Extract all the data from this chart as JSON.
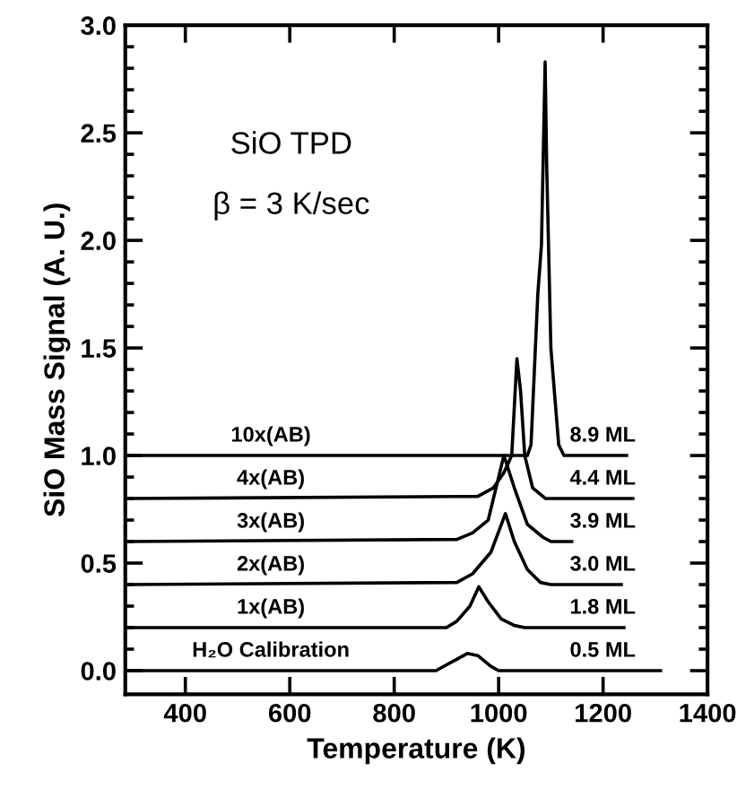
{
  "chart_data": {
    "type": "line",
    "title": "SiO TPD",
    "subtitle": "β = 3 K/sec",
    "xlabel": "Temperature (K)",
    "ylabel": "SiO Mass Signal (A. U.)",
    "xlim": [
      285,
      1400
    ],
    "ylim": [
      -0.11,
      3.0
    ],
    "xticks": [
      400,
      600,
      800,
      1000,
      1200,
      1400
    ],
    "yticks": [
      {
        "value": 0,
        "label": "0.0"
      },
      {
        "value": 0.1,
        "label": null
      },
      {
        "value": 0.2,
        "label": null
      },
      {
        "value": 0.3,
        "label": null
      },
      {
        "value": 0.4,
        "label": null
      },
      0.5,
      {
        "value": 0.6,
        "label": null
      },
      {
        "value": 0.7,
        "label": null
      },
      {
        "value": 0.8,
        "label": null
      },
      {
        "value": 0.9,
        "label": null
      },
      {
        "value": 1,
        "label": "1.0"
      },
      {
        "value": 1.1,
        "label": null
      },
      {
        "value": 1.2,
        "label": null
      },
      {
        "value": 1.3,
        "label": null
      },
      {
        "value": 1.4,
        "label": null
      },
      1.5,
      {
        "value": 1.6,
        "label": null
      },
      {
        "value": 1.7,
        "label": null
      },
      {
        "value": 1.8,
        "label": null
      },
      {
        "value": 1.9,
        "label": null
      },
      {
        "value": 2,
        "label": "2.0"
      },
      {
        "value": 2.1,
        "label": null
      },
      {
        "value": 2.2,
        "label": null
      },
      {
        "value": 2.3,
        "label": null
      },
      {
        "value": 2.4,
        "label": null
      },
      2.5,
      {
        "value": 2.6,
        "label": null
      },
      {
        "value": 2.7,
        "label": null
      },
      {
        "value": 2.8,
        "label": null
      },
      {
        "value": 2.9,
        "label": null
      },
      {
        "value": 3,
        "label": "3.0"
      }
    ],
    "grid": false,
    "marker": "none",
    "line_style": "solid",
    "series": [
      {
        "name": "H₂O Calibration",
        "color": "#000000",
        "x": [
          290,
          880,
          910,
          940,
          960,
          985,
          1000,
          1050,
          1310
        ],
        "values": [
          0,
          0,
          0.04,
          0.08,
          0.07,
          0.02,
          0,
          0,
          0
        ]
      },
      {
        "name": "1x(AB)",
        "color": "#000000",
        "x": [
          290,
          900,
          920,
          945,
          962,
          980,
          1005,
          1030,
          1050,
          1240
        ],
        "values": [
          0.2,
          0.2,
          0.23,
          0.3,
          0.39,
          0.32,
          0.24,
          0.21,
          0.2,
          0.2
        ]
      },
      {
        "name": "2x(AB)",
        "color": "#000000",
        "x": [
          290,
          920,
          950,
          985,
          1013,
          1030,
          1055,
          1080,
          1100,
          1235
        ],
        "values": [
          0.4,
          0.41,
          0.45,
          0.55,
          0.73,
          0.6,
          0.47,
          0.41,
          0.4,
          0.4
        ]
      },
      {
        "name": "3x(AB)",
        "color": "#000000",
        "x": [
          290,
          920,
          950,
          980,
          1000,
          1010,
          1030,
          1055,
          1085,
          1100,
          1140
        ],
        "values": [
          0.6,
          0.61,
          0.64,
          0.7,
          0.9,
          1.0,
          0.85,
          0.68,
          0.62,
          0.6,
          0.6
        ]
      },
      {
        "name": "4x(AB)",
        "color": "#000000",
        "x": [
          290,
          960,
          990,
          1010,
          1025,
          1035,
          1042,
          1050,
          1065,
          1090,
          1257
        ],
        "values": [
          0.8,
          0.81,
          0.85,
          0.92,
          1.0,
          1.45,
          1.3,
          1.0,
          0.85,
          0.8,
          0.8
        ]
      },
      {
        "name": "10x(AB)",
        "color": "#000000",
        "x": [
          290,
          1055,
          1062,
          1075,
          1082,
          1089,
          1092,
          1100,
          1115,
          1125,
          1245
        ],
        "values": [
          1.0,
          1.0,
          1.05,
          1.75,
          1.98,
          2.83,
          2.35,
          1.5,
          1.05,
          1.0,
          1.0
        ]
      }
    ],
    "annotations": [
      "0.5 ML",
      "1.8 ML",
      "3.0 ML",
      "3.9 ML",
      "4.4 ML",
      "8.9 ML"
    ]
  }
}
